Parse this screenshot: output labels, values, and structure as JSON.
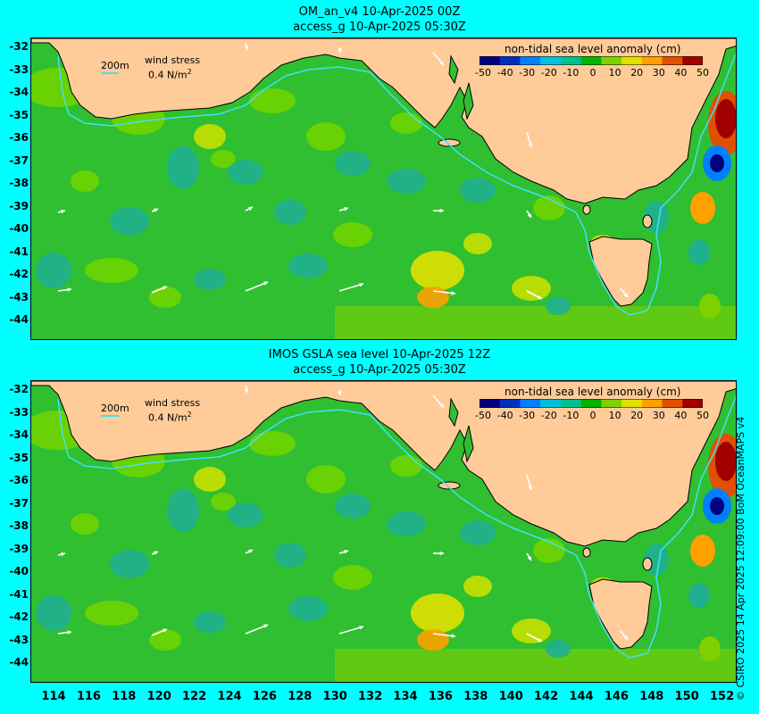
{
  "panels": [
    {
      "title_line1": "OM_an_v4  10-Apr-2025 00Z",
      "title_line2": "access_g 10-Apr-2025 05:30Z"
    },
    {
      "title_line1": "IMOS GSLA sea level  10-Apr-2025 12Z",
      "title_line2": "access_g 10-Apr-2025 05:30Z"
    }
  ],
  "legend": {
    "title": "non-tidal sea level anomaly (cm)",
    "ticks": [
      "-50",
      "-40",
      "-30",
      "-20",
      "-10",
      "0",
      "10",
      "20",
      "30",
      "40",
      "50"
    ],
    "colors": [
      "#000080",
      "#0030c0",
      "#0080ff",
      "#00c0e0",
      "#00c090",
      "#00b400",
      "#80d000",
      "#e0e000",
      "#ffa000",
      "#e05000",
      "#a00000"
    ]
  },
  "wind_key": {
    "label": "wind stress",
    "value": "0.4 N/m",
    "superscript": "2"
  },
  "isobath_label": "200m",
  "lat_labels": [
    "-32",
    "-33",
    "-34",
    "-35",
    "-36",
    "-37",
    "-38",
    "-39",
    "-40",
    "-41",
    "-42",
    "-43",
    "-44"
  ],
  "lon_labels": [
    "114",
    "116",
    "118",
    "120",
    "122",
    "124",
    "126",
    "128",
    "130",
    "132",
    "134",
    "136",
    "138",
    "140",
    "142",
    "144",
    "146",
    "148",
    "150",
    "152"
  ],
  "credit": "© CSIRO 2025  14 Apr 2025 12:09:00 BoM OceanMAPS v4",
  "colors": {
    "background": "#00ffff",
    "land": "#ffcc99",
    "ocean_base": "#2fbf30",
    "isobath": "#40e0ff"
  }
}
